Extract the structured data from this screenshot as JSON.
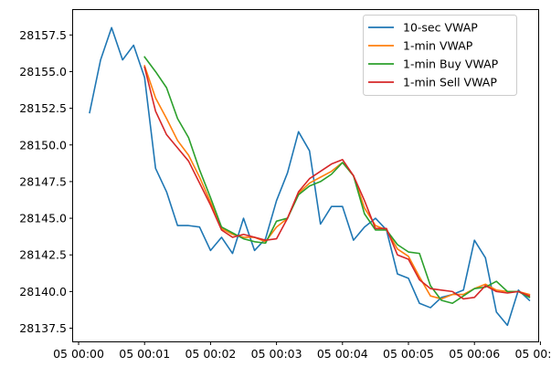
{
  "chart_data": {
    "type": "line",
    "title": "",
    "xlabel": "",
    "ylabel": "",
    "x_ticks": [
      "05 00:00",
      "05 00:01",
      "05 00:02",
      "05 00:03",
      "05 00:04",
      "05 00:05",
      "05 00:06",
      "05 00:07"
    ],
    "x_tick_seconds": [
      0,
      60,
      120,
      180,
      240,
      300,
      360,
      420
    ],
    "xlim_seconds": [
      -5,
      418
    ],
    "ylim": [
      28136.6,
      28159.2
    ],
    "y_ticks": [
      28137.5,
      28140.0,
      28142.5,
      28145.0,
      28147.5,
      28150.0,
      28152.5,
      28155.0,
      28157.5
    ],
    "y_tick_labels": [
      "28137.5",
      "28140.0",
      "28142.5",
      "28145.0",
      "28147.5",
      "28150.0",
      "28152.5",
      "28155.0",
      "28157.5"
    ],
    "grid": false,
    "legend_position": "top-right",
    "series": [
      {
        "name": "10-sec VWAP",
        "color": "#1f77b4",
        "x_seconds": [
          10,
          20,
          30,
          40,
          50,
          60,
          70,
          80,
          90,
          100,
          110,
          120,
          130,
          140,
          150,
          160,
          170,
          180,
          190,
          200,
          210,
          220,
          230,
          240,
          250,
          260,
          270,
          280,
          290,
          300,
          310,
          320,
          330,
          340,
          350,
          360,
          370,
          380,
          390,
          400,
          410
        ],
        "values": [
          28152.2,
          28155.8,
          28158.0,
          28155.8,
          28156.8,
          28154.6,
          28148.4,
          28146.8,
          28144.5,
          28144.5,
          28144.4,
          28142.8,
          28143.7,
          28142.6,
          28145.0,
          28142.8,
          28143.6,
          28146.2,
          28148.1,
          28150.9,
          28149.6,
          28144.6,
          28145.8,
          28145.8,
          28143.5,
          28144.4,
          28145.0,
          28144.2,
          28141.2,
          28140.9,
          28139.2,
          28138.9,
          28139.6,
          28139.8,
          28140.1,
          28143.5,
          28142.3,
          28138.6,
          28137.7,
          28140.1,
          28139.4
        ]
      },
      {
        "name": "1-min VWAP",
        "color": "#ff7f0e",
        "x_seconds": [
          60,
          70,
          80,
          90,
          100,
          110,
          120,
          130,
          140,
          150,
          160,
          170,
          180,
          190,
          200,
          210,
          220,
          230,
          240,
          250,
          260,
          270,
          280,
          290,
          300,
          310,
          320,
          330,
          340,
          350,
          360,
          370,
          380,
          390,
          400,
          410
        ],
        "values": [
          28155.4,
          28153.2,
          28151.8,
          28150.3,
          28149.3,
          28147.8,
          28146.1,
          28144.3,
          28143.9,
          28143.7,
          28143.7,
          28143.4,
          28144.4,
          28145.0,
          28146.7,
          28147.4,
          28147.8,
          28148.2,
          28148.8,
          28147.9,
          28145.7,
          28144.5,
          28144.2,
          28142.9,
          28142.4,
          28141.0,
          28139.7,
          28139.5,
          28139.8,
          28139.8,
          28140.2,
          28140.5,
          28140.1,
          28140.0,
          28140.0,
          28139.8
        ]
      },
      {
        "name": "1-min Buy VWAP",
        "color": "#2ca02c",
        "x_seconds": [
          60,
          70,
          80,
          90,
          100,
          110,
          120,
          130,
          140,
          150,
          160,
          170,
          180,
          190,
          200,
          210,
          220,
          230,
          240,
          250,
          260,
          270,
          280,
          290,
          300,
          310,
          320,
          330,
          340,
          350,
          360,
          370,
          380,
          390,
          400,
          410
        ],
        "values": [
          28156.0,
          28155.0,
          28153.9,
          28151.8,
          28150.5,
          28148.3,
          28146.4,
          28144.4,
          28144.0,
          28143.6,
          28143.4,
          28143.3,
          28144.8,
          28145.0,
          28146.6,
          28147.2,
          28147.5,
          28148.0,
          28148.8,
          28147.9,
          28145.3,
          28144.2,
          28144.2,
          28143.2,
          28142.7,
          28142.6,
          28140.4,
          28139.4,
          28139.2,
          28139.7,
          28140.2,
          28140.3,
          28140.7,
          28140.0,
          28140.0,
          28139.6
        ]
      },
      {
        "name": "1-min Sell VWAP",
        "color": "#d62728",
        "x_seconds": [
          60,
          70,
          80,
          90,
          100,
          110,
          120,
          130,
          140,
          150,
          160,
          170,
          180,
          190,
          200,
          210,
          220,
          230,
          240,
          250,
          260,
          270,
          280,
          290,
          300,
          310,
          320,
          330,
          340,
          350,
          360,
          370,
          380,
          390,
          400,
          410
        ],
        "values": [
          28155.3,
          28152.3,
          28150.7,
          28149.8,
          28148.9,
          28147.4,
          28145.9,
          28144.2,
          28143.7,
          28143.9,
          28143.7,
          28143.5,
          28143.6,
          28145.0,
          28146.8,
          28147.7,
          28148.2,
          28148.7,
          28149.0,
          28147.9,
          28146.2,
          28144.3,
          28144.3,
          28142.5,
          28142.2,
          28140.8,
          28140.2,
          28140.1,
          28140.0,
          28139.5,
          28139.6,
          28140.4,
          28140.0,
          28139.9,
          28140.0,
          28139.7
        ]
      }
    ]
  }
}
